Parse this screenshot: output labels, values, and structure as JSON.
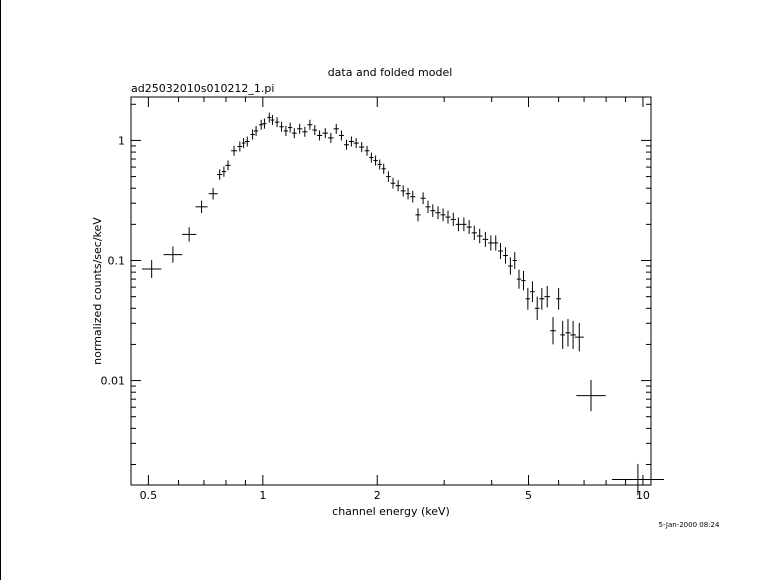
{
  "chart_data": {
    "type": "scatter",
    "title": "data and folded model",
    "subtitle": "ad25032010s010212_1.pi",
    "xlabel": "channel energy (keV)",
    "ylabel": "normalized counts/sec/keV",
    "x_scale": "log",
    "y_scale": "log",
    "xlim": [
      0.45,
      10.5
    ],
    "ylim": [
      0.00135,
      2.3
    ],
    "x_tick_labels": [
      "0.5",
      "1",
      "2",
      "5",
      "10"
    ],
    "y_tick_labels": [
      "0.01",
      "0.1",
      "1"
    ],
    "grid": false,
    "legend": "none",
    "timestamp": "5-Jan-2000 08:24",
    "series": [
      {
        "points": [
          {
            "x": 0.51,
            "y": 0.085
          },
          {
            "x": 0.58,
            "y": 0.112
          },
          {
            "x": 0.64,
            "y": 0.165
          },
          {
            "x": 0.69,
            "y": 0.28
          },
          {
            "x": 0.74,
            "y": 0.36
          },
          {
            "x": 0.77,
            "y": 0.52
          },
          {
            "x": 0.79,
            "y": 0.55
          },
          {
            "x": 0.81,
            "y": 0.62
          },
          {
            "x": 0.84,
            "y": 0.82
          },
          {
            "x": 0.87,
            "y": 0.89
          },
          {
            "x": 0.89,
            "y": 0.95
          },
          {
            "x": 0.91,
            "y": 0.98
          },
          {
            "x": 0.94,
            "y": 1.12
          },
          {
            "x": 0.96,
            "y": 1.2
          },
          {
            "x": 0.99,
            "y": 1.35
          },
          {
            "x": 1.01,
            "y": 1.38
          },
          {
            "x": 1.04,
            "y": 1.55
          },
          {
            "x": 1.06,
            "y": 1.48
          },
          {
            "x": 1.09,
            "y": 1.42
          },
          {
            "x": 1.12,
            "y": 1.3
          },
          {
            "x": 1.15,
            "y": 1.2
          },
          {
            "x": 1.18,
            "y": 1.28
          },
          {
            "x": 1.21,
            "y": 1.15
          },
          {
            "x": 1.25,
            "y": 1.25
          },
          {
            "x": 1.29,
            "y": 1.18
          },
          {
            "x": 1.33,
            "y": 1.35
          },
          {
            "x": 1.37,
            "y": 1.22
          },
          {
            "x": 1.41,
            "y": 1.1
          },
          {
            "x": 1.46,
            "y": 1.15
          },
          {
            "x": 1.51,
            "y": 1.05
          },
          {
            "x": 1.56,
            "y": 1.25
          },
          {
            "x": 1.61,
            "y": 1.1
          },
          {
            "x": 1.66,
            "y": 0.92
          },
          {
            "x": 1.71,
            "y": 0.98
          },
          {
            "x": 1.76,
            "y": 0.95
          },
          {
            "x": 1.82,
            "y": 0.88
          },
          {
            "x": 1.88,
            "y": 0.82
          },
          {
            "x": 1.93,
            "y": 0.72
          },
          {
            "x": 1.98,
            "y": 0.68
          },
          {
            "x": 2.03,
            "y": 0.63
          },
          {
            "x": 2.08,
            "y": 0.58
          },
          {
            "x": 2.14,
            "y": 0.5
          },
          {
            "x": 2.2,
            "y": 0.44
          },
          {
            "x": 2.27,
            "y": 0.42
          },
          {
            "x": 2.34,
            "y": 0.38
          },
          {
            "x": 2.41,
            "y": 0.36
          },
          {
            "x": 2.48,
            "y": 0.34
          },
          {
            "x": 2.56,
            "y": 0.24
          },
          {
            "x": 2.64,
            "y": 0.33
          },
          {
            "x": 2.72,
            "y": 0.28
          },
          {
            "x": 2.8,
            "y": 0.26
          },
          {
            "x": 2.89,
            "y": 0.25
          },
          {
            "x": 2.98,
            "y": 0.24
          },
          {
            "x": 3.07,
            "y": 0.23
          },
          {
            "x": 3.17,
            "y": 0.22
          },
          {
            "x": 3.27,
            "y": 0.2
          },
          {
            "x": 3.38,
            "y": 0.2
          },
          {
            "x": 3.49,
            "y": 0.19
          },
          {
            "x": 3.6,
            "y": 0.17
          },
          {
            "x": 3.72,
            "y": 0.16
          },
          {
            "x": 3.85,
            "y": 0.15
          },
          {
            "x": 3.98,
            "y": 0.14
          },
          {
            "x": 4.1,
            "y": 0.14
          },
          {
            "x": 4.22,
            "y": 0.12
          },
          {
            "x": 4.35,
            "y": 0.11
          },
          {
            "x": 4.48,
            "y": 0.09
          },
          {
            "x": 4.6,
            "y": 0.1
          },
          {
            "x": 4.72,
            "y": 0.07
          },
          {
            "x": 4.85,
            "y": 0.068
          },
          {
            "x": 4.98,
            "y": 0.048
          },
          {
            "x": 5.12,
            "y": 0.055
          },
          {
            "x": 5.27,
            "y": 0.04
          },
          {
            "x": 5.42,
            "y": 0.048
          },
          {
            "x": 5.6,
            "y": 0.05
          },
          {
            "x": 5.8,
            "y": 0.026
          },
          {
            "x": 6.0,
            "y": 0.048
          },
          {
            "x": 6.15,
            "y": 0.024
          },
          {
            "x": 6.35,
            "y": 0.025
          },
          {
            "x": 6.55,
            "y": 0.024
          },
          {
            "x": 6.8,
            "y": 0.023
          },
          {
            "x": 7.3,
            "y": 0.0075
          },
          {
            "x": 9.7,
            "y": 0.0015
          }
        ]
      }
    ]
  }
}
